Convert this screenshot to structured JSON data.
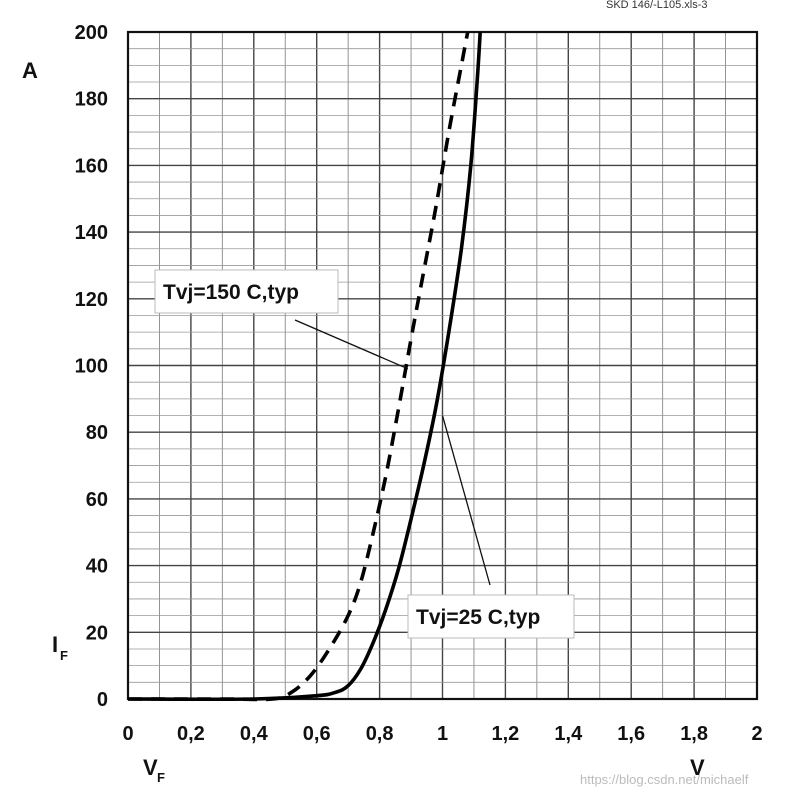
{
  "header_code": "SKD 146/-L105.xls-3",
  "watermark": "https://blog.csdn.net/michaelf",
  "chart_data": {
    "type": "line",
    "title": "",
    "xlabel": "V_F",
    "xlabel_main": "V",
    "xlabel_sub": "F",
    "ylabel": "I_F",
    "ylabel_main": "I",
    "ylabel_sub": "F",
    "x_unit": "V",
    "y_unit": "A",
    "xlim": [
      0,
      2
    ],
    "ylim": [
      0,
      200
    ],
    "x_ticks": [
      0,
      0.2,
      0.4,
      0.6,
      0.8,
      1,
      1.2,
      1.4,
      1.6,
      1.8,
      2
    ],
    "x_tick_labels": [
      "0",
      "0,2",
      "0,4",
      "0,6",
      "0,8",
      "1",
      "1,2",
      "1,4",
      "1,6",
      "1,8",
      "2"
    ],
    "y_ticks": [
      0,
      20,
      40,
      60,
      80,
      100,
      120,
      140,
      160,
      180,
      200
    ],
    "y_tick_labels": [
      "0",
      "20",
      "40",
      "60",
      "80",
      "100",
      "120",
      "140",
      "160",
      "180",
      "200"
    ],
    "grid": true,
    "series": [
      {
        "name": "Tvj=150 C,typ",
        "style": "dashed",
        "x": [
          0,
          0.3,
          0.46,
          0.52,
          0.58,
          0.64,
          0.7,
          0.74,
          0.78,
          0.82,
          0.86,
          0.9,
          0.94,
          0.98,
          1.02,
          1.06,
          1.08
        ],
        "y": [
          0,
          0,
          0,
          2,
          7,
          15,
          25,
          35,
          50,
          67,
          87,
          108,
          128,
          148,
          170,
          190,
          200
        ]
      },
      {
        "name": "Tvj=25 C,typ",
        "style": "solid",
        "x": [
          0,
          0.4,
          0.6,
          0.66,
          0.7,
          0.74,
          0.78,
          0.82,
          0.86,
          0.9,
          0.94,
          0.98,
          1.02,
          1.06,
          1.09,
          1.11,
          1.12
        ],
        "y": [
          0,
          0,
          1,
          2,
          4,
          9,
          17,
          27,
          39,
          54,
          70,
          88,
          110,
          135,
          160,
          185,
          200
        ]
      }
    ],
    "annotations": [
      {
        "text": "Tvj=150 C,typ",
        "series": 0,
        "target": [
          0.89,
          99
        ]
      },
      {
        "text": "Tvj=25 C,typ",
        "series": 1,
        "target": [
          1.0,
          85
        ]
      }
    ]
  }
}
